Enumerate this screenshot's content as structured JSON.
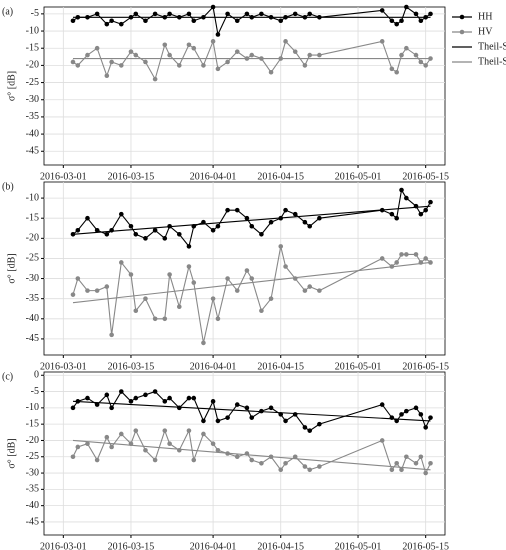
{
  "chart_data": [
    {
      "type": "line",
      "title": "(a)",
      "ylabel": "σ° [dB]",
      "grid": true,
      "legend": "right",
      "x": [
        "2016-03-03",
        "2016-03-04",
        "2016-03-06",
        "2016-03-08",
        "2016-03-10",
        "2016-03-11",
        "2016-03-13",
        "2016-03-15",
        "2016-03-16",
        "2016-03-18",
        "2016-03-20",
        "2016-03-22",
        "2016-03-23",
        "2016-03-25",
        "2016-03-27",
        "2016-03-28",
        "2016-03-30",
        "2016-04-01",
        "2016-04-02",
        "2016-04-04",
        "2016-04-06",
        "2016-04-08",
        "2016-04-09",
        "2016-04-11",
        "2016-04-13",
        "2016-04-15",
        "2016-04-16",
        "2016-04-18",
        "2016-04-20",
        "2016-04-21",
        "2016-04-23",
        "2016-05-06",
        "2016-05-08",
        "2016-05-09",
        "2016-05-10",
        "2016-05-11",
        "2016-05-13",
        "2016-05-14",
        "2016-05-15",
        "2016-05-16"
      ],
      "xlim": [
        "2016-02-26",
        "2016-05-19"
      ],
      "xticks": [
        "2016-03-01",
        "2016-03-15",
        "2016-04-01",
        "2016-04-15",
        "2016-05-01",
        "2016-05-15"
      ],
      "ylim": [
        -49,
        -3
      ],
      "yticks": [
        -5,
        -10,
        -15,
        -20,
        -25,
        -30,
        -35,
        -40,
        -45
      ],
      "series": [
        {
          "name": "HH",
          "color": "#000000",
          "marker": "o",
          "values": [
            -7,
            -6,
            -6,
            -5,
            -8,
            -7,
            -8,
            -6,
            -5,
            -7,
            -5,
            -6,
            -5,
            -6,
            -5,
            -7,
            -6,
            -3,
            -11,
            -5,
            -7,
            -5,
            -6,
            -5,
            -6,
            -7,
            -6,
            -5,
            -6,
            -5,
            -6,
            -4,
            -7,
            -8,
            -7,
            -3,
            -5,
            -7,
            -6,
            -5
          ]
        },
        {
          "name": "HV",
          "color": "#888888",
          "marker": "o",
          "values": [
            -19,
            -20,
            -17,
            -15,
            -23,
            -19,
            -20,
            -16,
            -17,
            -19,
            -24,
            -14,
            -17,
            -20,
            -14,
            -15,
            -20,
            -13,
            -21,
            -19,
            -16,
            -18,
            -17,
            -18,
            -22,
            -18,
            -13,
            -16,
            -20,
            -17,
            -17,
            -13,
            -21,
            -22,
            -17,
            -15,
            -17,
            -19,
            -20,
            -18
          ]
        },
        {
          "name": "Theil-Sen-reg. HH",
          "color": "#000000",
          "x": [
            "2016-03-03",
            "2016-05-16"
          ],
          "values": [
            -6,
            -6
          ]
        },
        {
          "name": "Theil-Sen-reg. HV",
          "color": "#888888",
          "x": [
            "2016-03-03",
            "2016-05-16"
          ],
          "values": [
            -18,
            -18
          ]
        }
      ]
    },
    {
      "type": "line",
      "title": "(b)",
      "ylabel": "σ° [dB]",
      "grid": true,
      "x": [
        "2016-03-03",
        "2016-03-04",
        "2016-03-06",
        "2016-03-08",
        "2016-03-10",
        "2016-03-11",
        "2016-03-13",
        "2016-03-15",
        "2016-03-16",
        "2016-03-18",
        "2016-03-20",
        "2016-03-22",
        "2016-03-23",
        "2016-03-25",
        "2016-03-27",
        "2016-03-28",
        "2016-03-30",
        "2016-04-01",
        "2016-04-02",
        "2016-04-04",
        "2016-04-06",
        "2016-04-08",
        "2016-04-09",
        "2016-04-11",
        "2016-04-13",
        "2016-04-15",
        "2016-04-16",
        "2016-04-18",
        "2016-04-20",
        "2016-04-21",
        "2016-04-23",
        "2016-05-06",
        "2016-05-08",
        "2016-05-09",
        "2016-05-10",
        "2016-05-11",
        "2016-05-13",
        "2016-05-14",
        "2016-05-15",
        "2016-05-16"
      ],
      "xlim": [
        "2016-02-26",
        "2016-05-19"
      ],
      "xticks": [
        "2016-03-01",
        "2016-03-15",
        "2016-04-01",
        "2016-04-15",
        "2016-05-01",
        "2016-05-15"
      ],
      "ylim": [
        -49,
        -6
      ],
      "yticks": [
        -10,
        -15,
        -20,
        -25,
        -30,
        -35,
        -40,
        -45
      ],
      "series": [
        {
          "name": "HH",
          "color": "#000000",
          "marker": "o",
          "values": [
            -19,
            -18,
            -15,
            -18,
            -19,
            -18,
            -14,
            -17,
            -19,
            -20,
            -18,
            -20,
            -17,
            -19,
            -22,
            -17,
            -16,
            -18,
            -17,
            -13,
            -13,
            -15,
            -17,
            -19,
            -16,
            -15,
            -13,
            -14,
            -16,
            -17,
            -15,
            -13,
            -14,
            -15,
            -8,
            -10,
            -12,
            -14,
            -13,
            -11
          ]
        },
        {
          "name": "HV",
          "color": "#888888",
          "marker": "o",
          "values": [
            -34,
            -30,
            -33,
            -33,
            -32,
            -44,
            -26,
            -29,
            -38,
            -35,
            -40,
            -40,
            -29,
            -37,
            -27,
            -31,
            -46,
            -35,
            -40,
            -30,
            -33,
            -28,
            -30,
            -38,
            -35,
            -22,
            -27,
            -30,
            -33,
            -32,
            -33,
            -25,
            -27,
            -26,
            -24,
            -24,
            -24,
            -26,
            -25,
            -26
          ]
        },
        {
          "name": "Theil-Sen-reg. HH",
          "color": "#000000",
          "x": [
            "2016-03-03",
            "2016-05-16"
          ],
          "values": [
            -19,
            -12
          ]
        },
        {
          "name": "Theil-Sen-reg. HV",
          "color": "#888888",
          "x": [
            "2016-03-03",
            "2016-05-16"
          ],
          "values": [
            -36,
            -26
          ]
        }
      ]
    },
    {
      "type": "line",
      "title": "(c)",
      "ylabel": "σ° [dB]",
      "grid": true,
      "x": [
        "2016-03-03",
        "2016-03-04",
        "2016-03-06",
        "2016-03-08",
        "2016-03-10",
        "2016-03-11",
        "2016-03-13",
        "2016-03-15",
        "2016-03-16",
        "2016-03-18",
        "2016-03-20",
        "2016-03-22",
        "2016-03-23",
        "2016-03-25",
        "2016-03-27",
        "2016-03-28",
        "2016-03-30",
        "2016-04-01",
        "2016-04-02",
        "2016-04-04",
        "2016-04-06",
        "2016-04-08",
        "2016-04-09",
        "2016-04-11",
        "2016-04-13",
        "2016-04-15",
        "2016-04-16",
        "2016-04-18",
        "2016-04-20",
        "2016-04-21",
        "2016-04-23",
        "2016-05-06",
        "2016-05-08",
        "2016-05-09",
        "2016-05-10",
        "2016-05-11",
        "2016-05-13",
        "2016-05-14",
        "2016-05-15",
        "2016-05-16"
      ],
      "xlim": [
        "2016-02-26",
        "2016-05-19"
      ],
      "xticks": [
        "2016-03-01",
        "2016-03-15",
        "2016-04-01",
        "2016-04-15",
        "2016-05-01",
        "2016-05-15"
      ],
      "ylim": [
        -49,
        1
      ],
      "yticks": [
        0,
        -5,
        -10,
        -15,
        -20,
        -25,
        -30,
        -35,
        -40,
        -45
      ],
      "series": [
        {
          "name": "HH",
          "color": "#000000",
          "marker": "o",
          "values": [
            -10,
            -8,
            -7,
            -9,
            -6,
            -10,
            -5,
            -8,
            -7,
            -6,
            -5,
            -8,
            -7,
            -10,
            -7,
            -7,
            -14,
            -8,
            -14,
            -13,
            -9,
            -10,
            -13,
            -11,
            -10,
            -12,
            -14,
            -12,
            -16,
            -17,
            -15,
            -9,
            -13,
            -14,
            -12,
            -11,
            -10,
            -12,
            -16,
            -13
          ]
        },
        {
          "name": "HV",
          "color": "#888888",
          "marker": "o",
          "values": [
            -25,
            -22,
            -21,
            -26,
            -19,
            -22,
            -18,
            -21,
            -17,
            -23,
            -26,
            -17,
            -21,
            -23,
            -17,
            -26,
            -18,
            -21,
            -23,
            -24,
            -25,
            -24,
            -26,
            -27,
            -25,
            -29,
            -27,
            -25,
            -28,
            -29,
            -28,
            -20,
            -29,
            -27,
            -29,
            -25,
            -27,
            -25,
            -30,
            -27
          ]
        },
        {
          "name": "Theil-Sen-reg. HH",
          "color": "#000000",
          "x": [
            "2016-03-03",
            "2016-05-16"
          ],
          "values": [
            -8,
            -14
          ]
        },
        {
          "name": "Theil-Sen-reg. HV",
          "color": "#888888",
          "x": [
            "2016-03-03",
            "2016-05-16"
          ],
          "values": [
            -20,
            -29
          ]
        }
      ]
    }
  ]
}
